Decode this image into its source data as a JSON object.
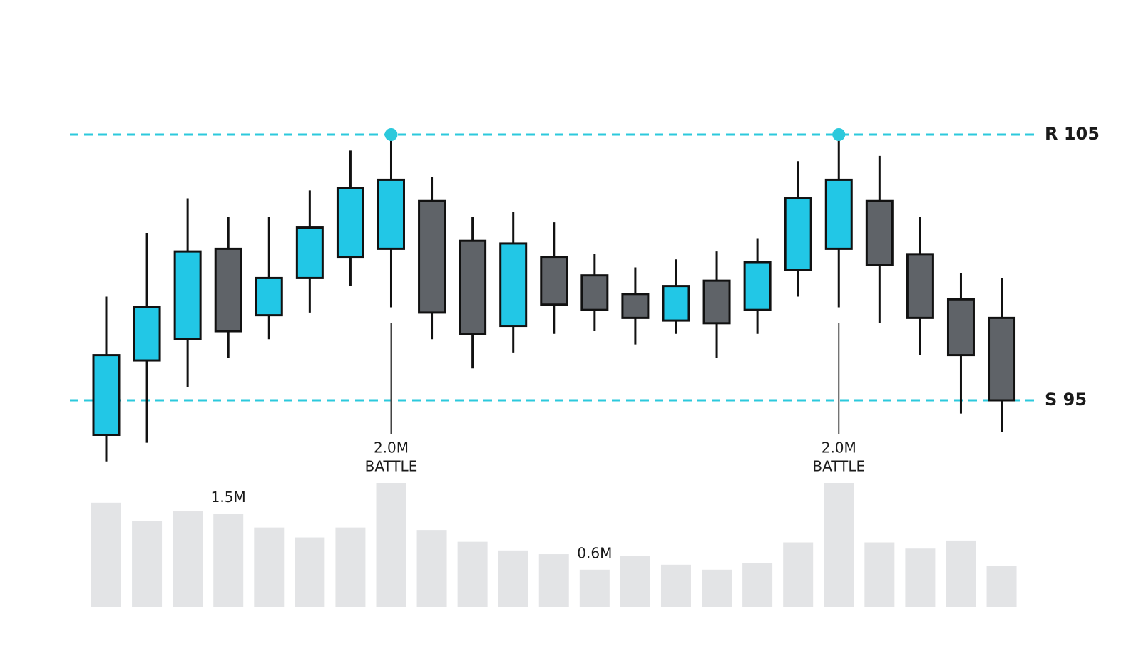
{
  "chart_data": {
    "type": "candlestick",
    "open": [
      93.7,
      96.5,
      97.3,
      100.7,
      98.2,
      99.6,
      100.4,
      100.7,
      102.5,
      101.0,
      97.8,
      100.4,
      99.7,
      99.0,
      98.0,
      99.5,
      98.4,
      99.9,
      100.7,
      102.5,
      100.5,
      98.8,
      98.1
    ],
    "high": [
      98.9,
      101.3,
      102.6,
      101.9,
      101.9,
      102.9,
      104.4,
      105,
      103.4,
      101.9,
      102.1,
      101.7,
      100.5,
      100.0,
      100.3,
      100.6,
      101.1,
      104.0,
      105,
      104.2,
      101.9,
      99.8,
      99.6
    ],
    "low": [
      92.7,
      93.4,
      95.5,
      96.6,
      97.3,
      98.3,
      99.3,
      98.5,
      97.3,
      96.2,
      96.8,
      97.5,
      97.6,
      97.1,
      97.5,
      96.6,
      97.5,
      98.9,
      98.5,
      97.9,
      96.7,
      94.5,
      93.8
    ],
    "close": [
      96.7,
      98.5,
      100.6,
      97.6,
      99.6,
      101.5,
      103.0,
      103.3,
      98.3,
      97.5,
      100.9,
      98.6,
      98.4,
      98.1,
      99.3,
      97.9,
      100.2,
      102.6,
      103.3,
      100.1,
      98.1,
      96.7,
      95.0
    ],
    "colors": {
      "up": "#22c7e6",
      "down": "#5f6368"
    },
    "levels": [
      {
        "value": 105,
        "label": "R 105"
      },
      {
        "value": 95,
        "label": "S 95"
      }
    ],
    "level_color": "#2cc9dc",
    "annotations": [
      {
        "index": 7,
        "lines": [
          "2.0M",
          "BATTLE"
        ]
      },
      {
        "index": 18,
        "lines": [
          "2.0M",
          "BATTLE"
        ]
      }
    ],
    "volume": {
      "values": [
        1.68,
        1.39,
        1.54,
        1.5,
        1.28,
        1.12,
        1.28,
        2.0,
        1.24,
        1.05,
        0.91,
        0.85,
        0.6,
        0.82,
        0.68,
        0.6,
        0.71,
        1.04,
        2.0,
        1.04,
        0.94,
        1.07,
        0.66
      ],
      "value_labels": [
        null,
        null,
        null,
        "1.5M",
        null,
        null,
        null,
        null,
        null,
        null,
        null,
        null,
        "0.6M",
        null,
        null,
        null,
        null,
        null,
        null,
        null,
        null,
        null,
        null
      ],
      "color": "#e3e4e6"
    }
  }
}
